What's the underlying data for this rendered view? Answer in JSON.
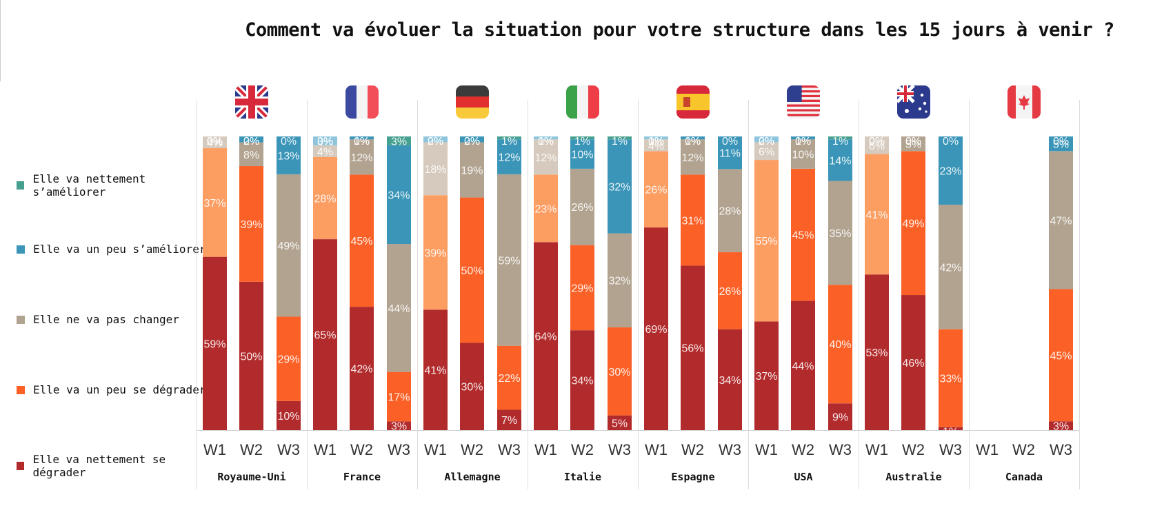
{
  "title": "Comment va évoluer la situation pour votre structure dans les 15 jours à venir ?",
  "legend": [
    {
      "label": "Elle va nettement s’améliorer",
      "color": "#45a08f"
    },
    {
      "label": "Elle va un peu s’améliorer",
      "color": "#3a95b8"
    },
    {
      "label": "Elle ne va pas changer",
      "color": "#b1a390"
    },
    {
      "label": "Elle va un peu se dégrader",
      "color": "#fb6127"
    },
    {
      "label": "Elle va nettement se dégrader",
      "color": "#b22b2c"
    }
  ],
  "chart_data": {
    "type": "bar",
    "stacked": true,
    "title": "Comment va évoluer la situation pour votre structure dans les 15 jours à venir ?",
    "waves": [
      "W1",
      "W2",
      "W3"
    ],
    "series_order_bottom_to_top": [
      "Elle va nettement se dégrader",
      "Elle va un peu se dégrader",
      "Elle ne va pas changer",
      "Elle va un peu s’améliorer",
      "Elle va nettement s’améliorer"
    ],
    "groups": [
      {
        "country": "Royaume-Uni",
        "flag": "uk-flag-icon",
        "bars": [
          {
            "wave": "W1",
            "values": [
              59,
              37,
              4,
              0,
              0
            ],
            "labels": [
              "59%",
              "37%",
              "4%",
              "0%",
              "0%"
            ]
          },
          {
            "wave": "W2",
            "values": [
              50,
              39,
              8,
              2,
              0
            ],
            "labels": [
              "50%",
              "39%",
              "8%",
              "2%",
              "0%"
            ]
          },
          {
            "wave": "W3",
            "values": [
              10,
              29,
              49,
              13,
              0
            ],
            "labels": [
              "10%",
              "29%",
              "49%",
              "13%",
              "0%"
            ]
          }
        ]
      },
      {
        "country": "France",
        "flag": "france-flag-icon",
        "bars": [
          {
            "wave": "W1",
            "values": [
              65,
              28,
              4,
              3,
              0
            ],
            "labels": [
              "65%",
              "28%",
              "4%",
              "3%",
              "0%"
            ]
          },
          {
            "wave": "W2",
            "values": [
              42,
              45,
              12,
              1,
              0
            ],
            "labels": [
              "42%",
              "45%",
              "12%",
              "1%",
              "0%"
            ]
          },
          {
            "wave": "W3",
            "values": [
              3,
              17,
              44,
              34,
              3
            ],
            "labels": [
              "3%",
              "17%",
              "44%",
              "34%",
              "3%"
            ]
          }
        ]
      },
      {
        "country": "Allemagne",
        "flag": "germany-flag-icon",
        "bars": [
          {
            "wave": "W1",
            "values": [
              41,
              39,
              18,
              2,
              0
            ],
            "labels": [
              "41%",
              "39%",
              "18%",
              "2%",
              "0%"
            ]
          },
          {
            "wave": "W2",
            "values": [
              30,
              50,
              19,
              2,
              0
            ],
            "labels": [
              "30%",
              "50%",
              "19%",
              "2%",
              "0%"
            ]
          },
          {
            "wave": "W3",
            "values": [
              7,
              22,
              59,
              12,
              1
            ],
            "labels": [
              "7%",
              "22%",
              "59%",
              "12%",
              "1%"
            ]
          }
        ]
      },
      {
        "country": "Italie",
        "flag": "italy-flag-icon",
        "bars": [
          {
            "wave": "W1",
            "values": [
              64,
              23,
              12,
              1,
              0
            ],
            "labels": [
              "64%",
              "23%",
              "12%",
              "1%",
              "0%"
            ]
          },
          {
            "wave": "W2",
            "values": [
              34,
              29,
              26,
              10,
              1
            ],
            "labels": [
              "34%",
              "29%",
              "26%",
              "10%",
              "1%"
            ]
          },
          {
            "wave": "W3",
            "values": [
              5,
              30,
              32,
              32,
              1
            ],
            "labels": [
              "5%",
              "30%",
              "32%",
              "32%",
              "1%"
            ]
          }
        ]
      },
      {
        "country": "Espagne",
        "flag": "spain-flag-icon",
        "bars": [
          {
            "wave": "W1",
            "values": [
              69,
              26,
              4,
              1,
              0
            ],
            "labels": [
              "69%",
              "26%",
              "4%",
              "1%",
              "0%"
            ]
          },
          {
            "wave": "W2",
            "values": [
              56,
              31,
              12,
              1,
              0
            ],
            "labels": [
              "56%",
              "31%",
              "12%",
              "1%",
              "0%"
            ]
          },
          {
            "wave": "W3",
            "values": [
              34,
              26,
              28,
              11,
              0
            ],
            "labels": [
              "34%",
              "26%",
              "28%",
              "11%",
              "0%"
            ]
          }
        ]
      },
      {
        "country": "USA",
        "flag": "usa-flag-icon",
        "bars": [
          {
            "wave": "W1",
            "values": [
              37,
              55,
              6,
              2,
              0
            ],
            "labels": [
              "37%",
              "55%",
              "6%",
              "2%",
              "0%"
            ]
          },
          {
            "wave": "W2",
            "values": [
              44,
              45,
              10,
              1,
              0
            ],
            "labels": [
              "44%",
              "45%",
              "10%",
              "1%",
              "0%"
            ]
          },
          {
            "wave": "W3",
            "values": [
              9,
              40,
              35,
              14,
              1
            ],
            "labels": [
              "9%",
              "40%",
              "35%",
              "14%",
              "1%"
            ]
          }
        ]
      },
      {
        "country": "Australie",
        "flag": "australia-flag-icon",
        "bars": [
          {
            "wave": "W1",
            "values": [
              53,
              41,
              6,
              0,
              0
            ],
            "labels": [
              "53%",
              "41%",
              "6%",
              "0%",
              "0%"
            ]
          },
          {
            "wave": "W2",
            "values": [
              46,
              49,
              5,
              0,
              0
            ],
            "labels": [
              "46%",
              "49%",
              "5%",
              "0%",
              "0%"
            ]
          },
          {
            "wave": "W3",
            "values": [
              1,
              33,
              42,
              23,
              0
            ],
            "labels": [
              "1%",
              "33%",
              "42%",
              "23%",
              "0%"
            ]
          }
        ]
      },
      {
        "country": "Canada",
        "flag": "canada-flag-icon",
        "bars": [
          {
            "wave": "W1",
            "values": [],
            "labels": []
          },
          {
            "wave": "W2",
            "values": [],
            "labels": []
          },
          {
            "wave": "W3",
            "values": [
              3,
              45,
              47,
              5,
              0
            ],
            "labels": [
              "3%",
              "45%",
              "47%",
              "5%",
              "0%"
            ]
          }
        ]
      }
    ]
  }
}
